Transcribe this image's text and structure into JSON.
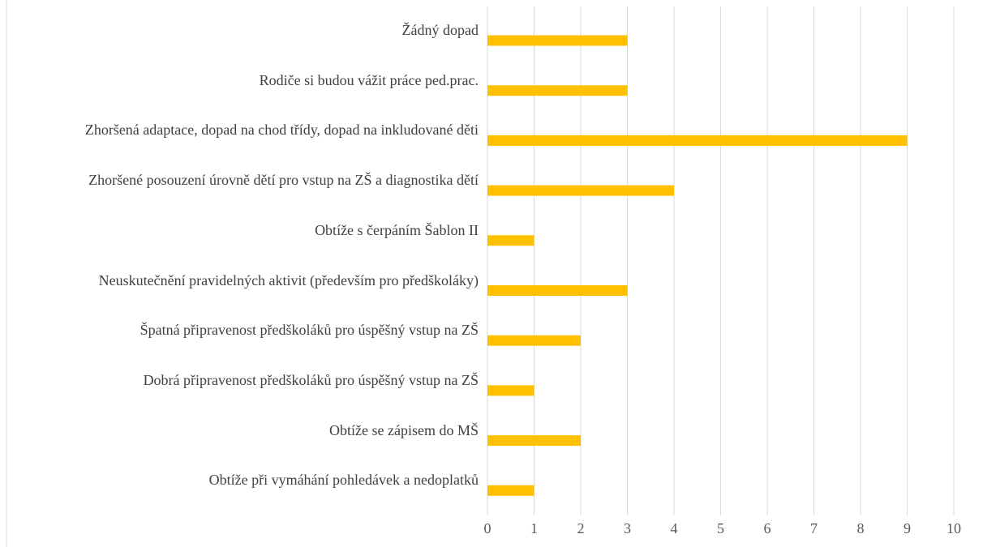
{
  "chart_data": {
    "type": "barh",
    "categories": [
      "Žádný dopad",
      "Rodiče si budou vážit práce ped.prac.",
      "Zhoršená adaptace, dopad na chod třídy, dopad na inkludované děti",
      "Zhoršené posouzení úrovně dětí pro vstup na ZŠ a diagnostika dětí",
      "Obtíže s čerpáním Šablon II",
      "Neuskutečnění pravidelných aktivit (především pro předškoláky)",
      "Špatná připravenost předškoláků pro úspěšný vstup na ZŠ",
      "Dobrá připravenost předškoláků pro úspěšný vstup na ZŠ",
      "Obtíže se zápisem do MŠ",
      "Obtíže při vymáhání pohledávek a nedoplatků"
    ],
    "values": [
      3,
      3,
      9,
      4,
      1,
      3,
      2,
      1,
      2,
      1
    ],
    "color": "#ffc000",
    "xlim": [
      0,
      10
    ],
    "xticks": [
      0,
      1,
      2,
      3,
      4,
      5,
      6,
      7,
      8,
      9,
      10
    ],
    "grid": true
  }
}
